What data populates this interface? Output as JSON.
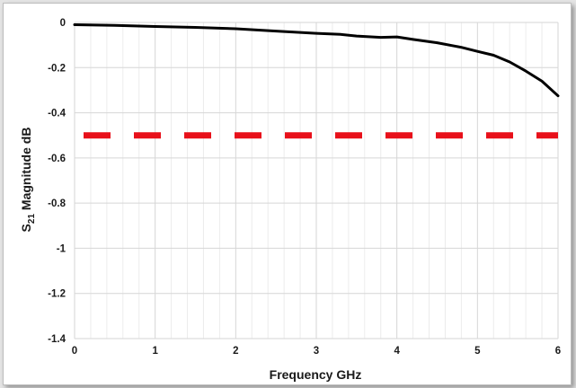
{
  "chart_data": {
    "type": "line",
    "xlabel": "Frequency GHz",
    "ylabel_main": "S",
    "ylabel_sub": "21",
    "ylabel_rest": " Magnitude dB",
    "xlim": [
      0,
      6
    ],
    "ylim": [
      -1.4,
      0
    ],
    "x_ticks": [
      0,
      1,
      2,
      3,
      4,
      5,
      6
    ],
    "x_tick_labels": [
      "0",
      "1",
      "2",
      "3",
      "4",
      "5",
      "6"
    ],
    "y_ticks": [
      0,
      -0.2,
      -0.4,
      -0.6,
      -0.8,
      -1,
      -1.2,
      -1.4
    ],
    "y_tick_labels": [
      "0",
      "-0.2",
      "-0.4",
      "-0.6",
      "-0.8",
      "-1",
      "-1.2",
      "-1.4"
    ],
    "x_minor_step": 0.2,
    "grid": true,
    "series": [
      {
        "color": "#000000",
        "x": [
          0.0,
          0.5,
          1.0,
          1.5,
          2.0,
          2.5,
          3.0,
          3.3,
          3.5,
          3.8,
          4.0,
          4.2,
          4.5,
          4.8,
          5.0,
          5.2,
          5.4,
          5.6,
          5.8,
          6.0
        ],
        "y": [
          -0.01,
          -0.013,
          -0.018,
          -0.022,
          -0.028,
          -0.038,
          -0.048,
          -0.053,
          -0.06,
          -0.066,
          -0.064,
          -0.075,
          -0.09,
          -0.11,
          -0.128,
          -0.145,
          -0.175,
          -0.215,
          -0.26,
          -0.325
        ]
      }
    ],
    "reference_line": {
      "y": -0.5,
      "color": "#e8101a",
      "style": "dashed"
    }
  }
}
